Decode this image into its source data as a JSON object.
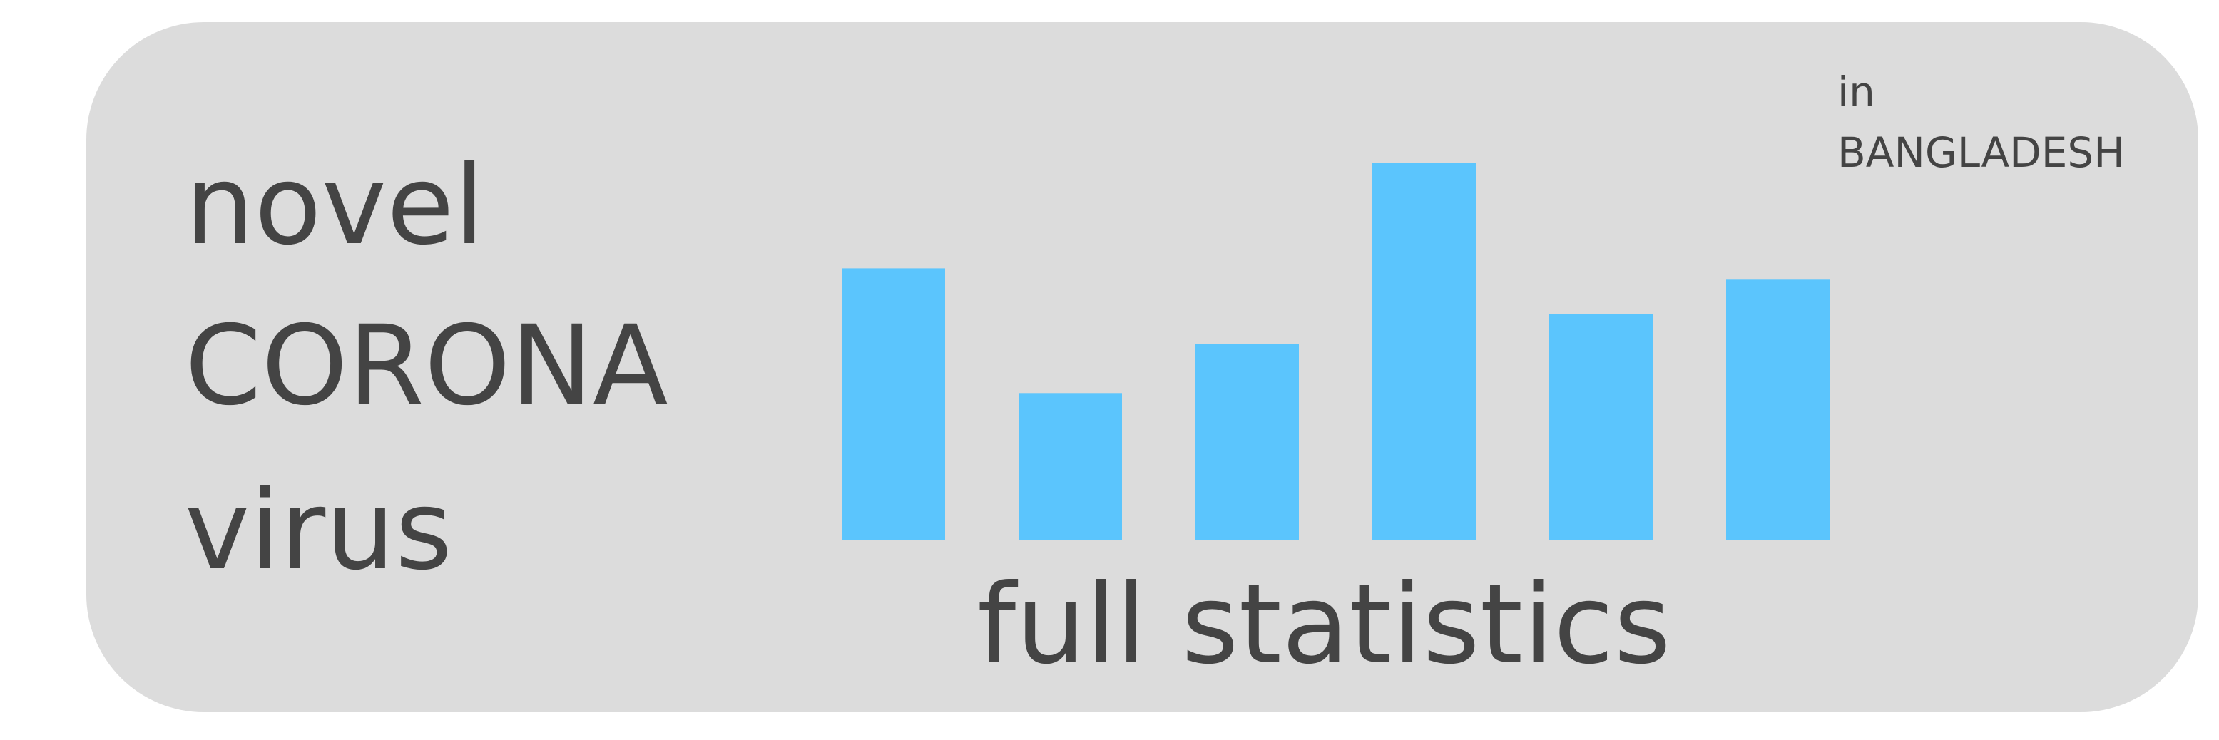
{
  "title_lines": [
    "novel",
    "CORONA",
    "virus"
  ],
  "region": {
    "prefix": "in",
    "name": "BANGLADESH"
  },
  "caption": "full statistics",
  "colors": {
    "card_background": "#dcdcdc",
    "text": "#444444",
    "bar": "#5bc5fd"
  },
  "chart_data": {
    "type": "bar",
    "categories": [
      "",
      "",
      "",
      "",
      "",
      ""
    ],
    "values": [
      0.72,
      0.39,
      0.52,
      1.0,
      0.6,
      0.69
    ],
    "title": "",
    "xlabel": "",
    "ylabel": "",
    "ylim": [
      0,
      1
    ],
    "grid": false
  }
}
